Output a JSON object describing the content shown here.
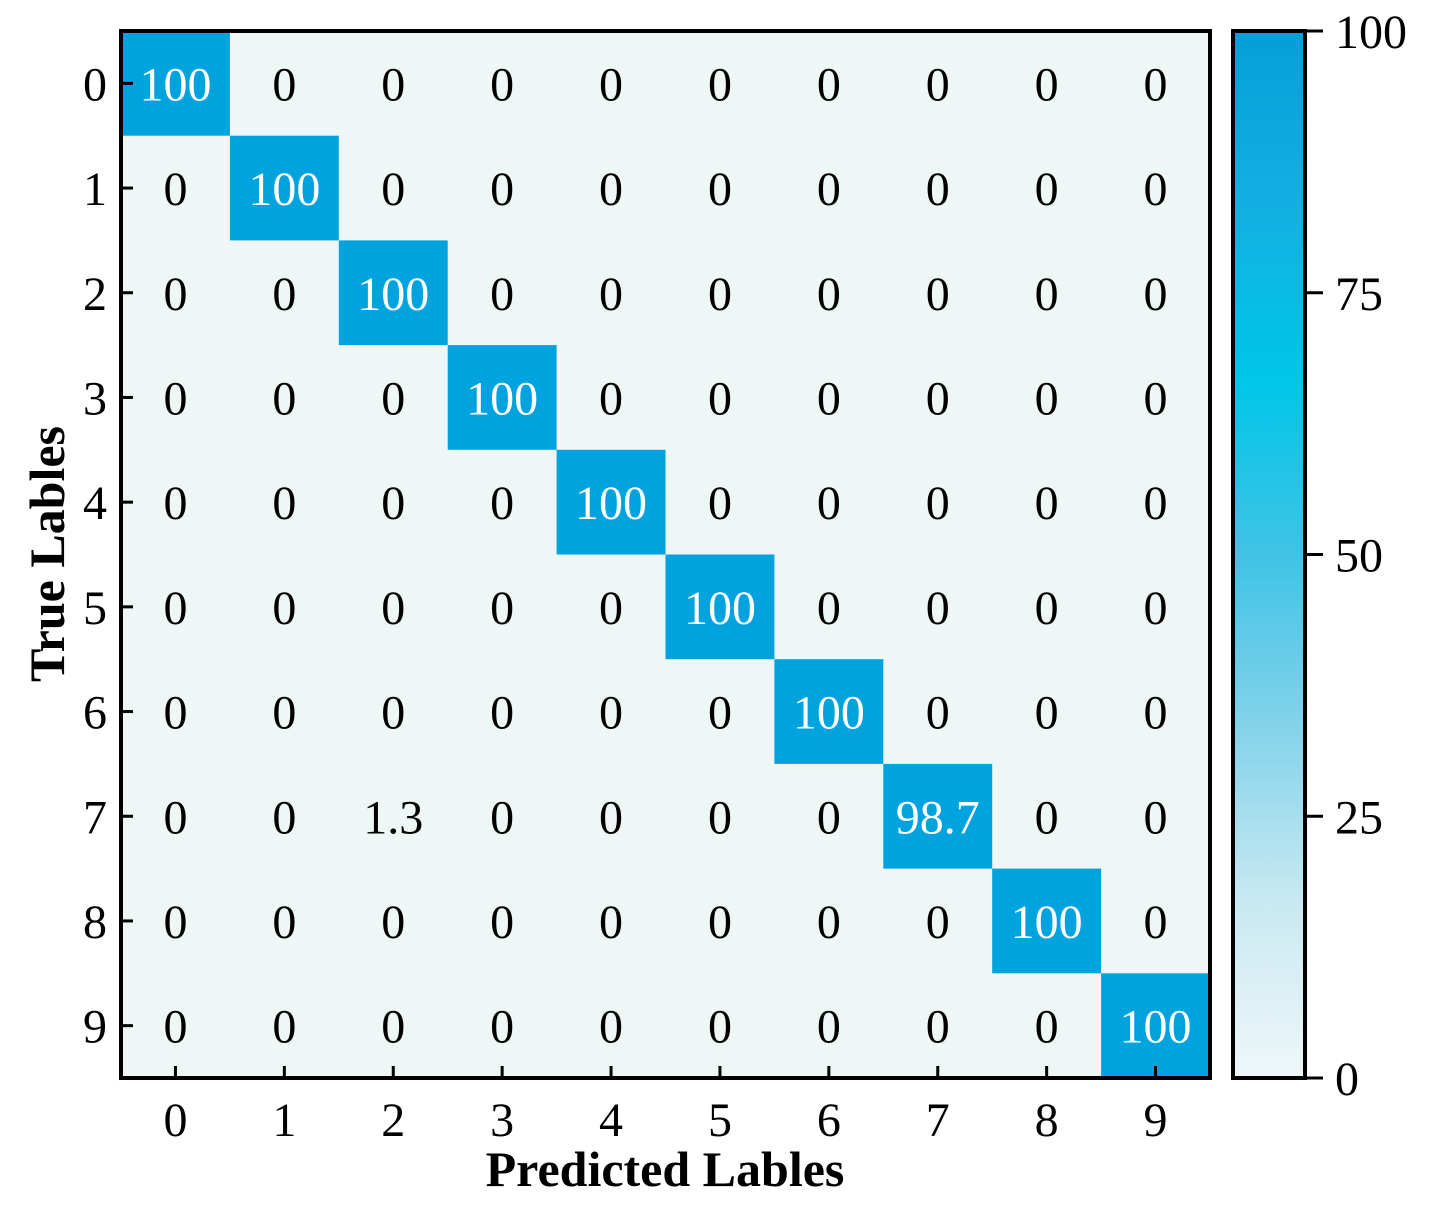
{
  "chart_data": {
    "type": "heatmap",
    "title": "",
    "xlabel": "Predicted Lables",
    "ylabel": "True Lables",
    "x_categories": [
      "0",
      "1",
      "2",
      "3",
      "4",
      "5",
      "6",
      "7",
      "8",
      "9"
    ],
    "y_categories": [
      "0",
      "1",
      "2",
      "3",
      "4",
      "5",
      "6",
      "7",
      "8",
      "9"
    ],
    "values": [
      [
        100,
        0,
        0,
        0,
        0,
        0,
        0,
        0,
        0,
        0
      ],
      [
        0,
        100,
        0,
        0,
        0,
        0,
        0,
        0,
        0,
        0
      ],
      [
        0,
        0,
        100,
        0,
        0,
        0,
        0,
        0,
        0,
        0
      ],
      [
        0,
        0,
        0,
        100,
        0,
        0,
        0,
        0,
        0,
        0
      ],
      [
        0,
        0,
        0,
        0,
        100,
        0,
        0,
        0,
        0,
        0
      ],
      [
        0,
        0,
        0,
        0,
        0,
        100,
        0,
        0,
        0,
        0
      ],
      [
        0,
        0,
        0,
        0,
        0,
        0,
        100,
        0,
        0,
        0
      ],
      [
        0,
        0,
        1.3,
        0,
        0,
        0,
        0,
        98.7,
        0,
        0
      ],
      [
        0,
        0,
        0,
        0,
        0,
        0,
        0,
        0,
        100,
        0
      ],
      [
        0,
        0,
        0,
        0,
        0,
        0,
        0,
        0,
        0,
        100
      ]
    ],
    "colorbar": {
      "range": [
        0,
        100
      ],
      "ticks": [
        0,
        25,
        50,
        75,
        100
      ],
      "colormap": [
        "#eef7f8",
        "#c9e9f2",
        "#84d3ea",
        "#3fc3e6",
        "#00c6e8",
        "#12b0e2",
        "#049fd9"
      ]
    },
    "colors": {
      "low_cell": "#eef7f5",
      "high_cell": "#00a3de",
      "text_on_low": "#000000",
      "text_on_high": "#ffffff",
      "frame": "#000000"
    },
    "grid": false
  }
}
